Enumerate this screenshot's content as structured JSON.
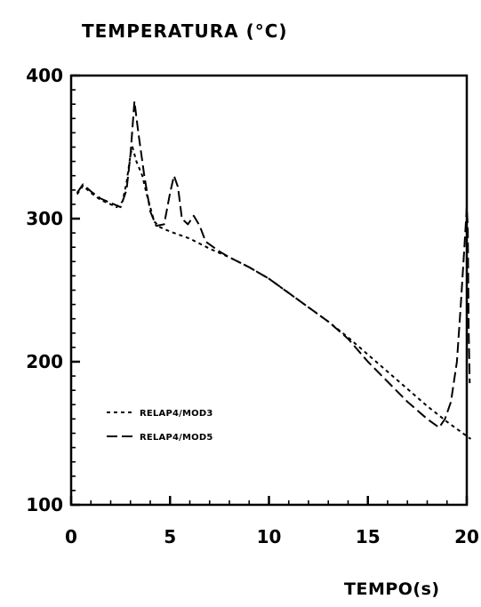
{
  "chart_data": {
    "type": "line",
    "title": "",
    "ylabel": "TEMPERATURA (°C)",
    "xlabel": "TEMPO(s)",
    "xlim": [
      0,
      20
    ],
    "ylim": [
      100,
      400
    ],
    "x_ticks": [
      0,
      5,
      10,
      15,
      20
    ],
    "y_ticks": [
      100,
      200,
      300,
      400
    ],
    "grid": false,
    "legend_placement": "lower-left",
    "series": [
      {
        "name": "RELAP4/MOD3",
        "style": "short-dash",
        "points": [
          [
            0.3,
            317
          ],
          [
            0.6,
            323
          ],
          [
            1.0,
            318
          ],
          [
            1.5,
            313
          ],
          [
            2.0,
            310
          ],
          [
            2.3,
            308
          ],
          [
            2.6,
            312
          ],
          [
            2.8,
            325
          ],
          [
            3.0,
            345
          ],
          [
            3.1,
            350
          ],
          [
            3.3,
            340
          ],
          [
            3.6,
            330
          ],
          [
            3.8,
            318
          ],
          [
            4.0,
            308
          ],
          [
            4.2,
            298
          ],
          [
            4.5,
            294
          ],
          [
            5.0,
            291
          ],
          [
            6.0,
            286
          ],
          [
            7.0,
            279
          ],
          [
            8.0,
            273
          ],
          [
            9.0,
            266
          ],
          [
            10.0,
            258
          ],
          [
            11.0,
            248
          ],
          [
            12.0,
            238
          ],
          [
            13.0,
            228
          ],
          [
            14.0,
            217
          ],
          [
            15.0,
            205
          ],
          [
            16.0,
            193
          ],
          [
            17.0,
            181
          ],
          [
            18.0,
            169
          ],
          [
            19.0,
            158
          ],
          [
            20.0,
            148
          ],
          [
            20.2,
            146
          ]
        ]
      },
      {
        "name": "RELAP4/MOD5",
        "style": "long-dash",
        "points": [
          [
            0.3,
            318
          ],
          [
            0.6,
            324
          ],
          [
            1.0,
            319
          ],
          [
            1.5,
            314
          ],
          [
            2.0,
            311
          ],
          [
            2.5,
            308
          ],
          [
            2.8,
            320
          ],
          [
            3.0,
            345
          ],
          [
            3.2,
            382
          ],
          [
            3.4,
            360
          ],
          [
            3.7,
            330
          ],
          [
            4.0,
            305
          ],
          [
            4.3,
            295
          ],
          [
            4.7,
            296
          ],
          [
            5.0,
            318
          ],
          [
            5.2,
            330
          ],
          [
            5.4,
            322
          ],
          [
            5.6,
            300
          ],
          [
            5.9,
            296
          ],
          [
            6.2,
            302
          ],
          [
            6.5,
            295
          ],
          [
            6.8,
            284
          ],
          [
            7.5,
            277
          ],
          [
            8.0,
            273
          ],
          [
            9.0,
            266
          ],
          [
            10.0,
            258
          ],
          [
            11.0,
            248
          ],
          [
            12.0,
            238
          ],
          [
            13.0,
            228
          ],
          [
            14.0,
            216
          ],
          [
            15.0,
            200
          ],
          [
            16.0,
            186
          ],
          [
            17.0,
            172
          ],
          [
            18.0,
            160
          ],
          [
            18.6,
            154
          ],
          [
            18.9,
            160
          ],
          [
            19.2,
            172
          ],
          [
            19.5,
            200
          ],
          [
            19.7,
            240
          ],
          [
            19.9,
            285
          ],
          [
            20.0,
            308
          ],
          [
            20.05,
            295
          ],
          [
            20.1,
            220
          ],
          [
            20.15,
            185
          ]
        ]
      }
    ]
  }
}
